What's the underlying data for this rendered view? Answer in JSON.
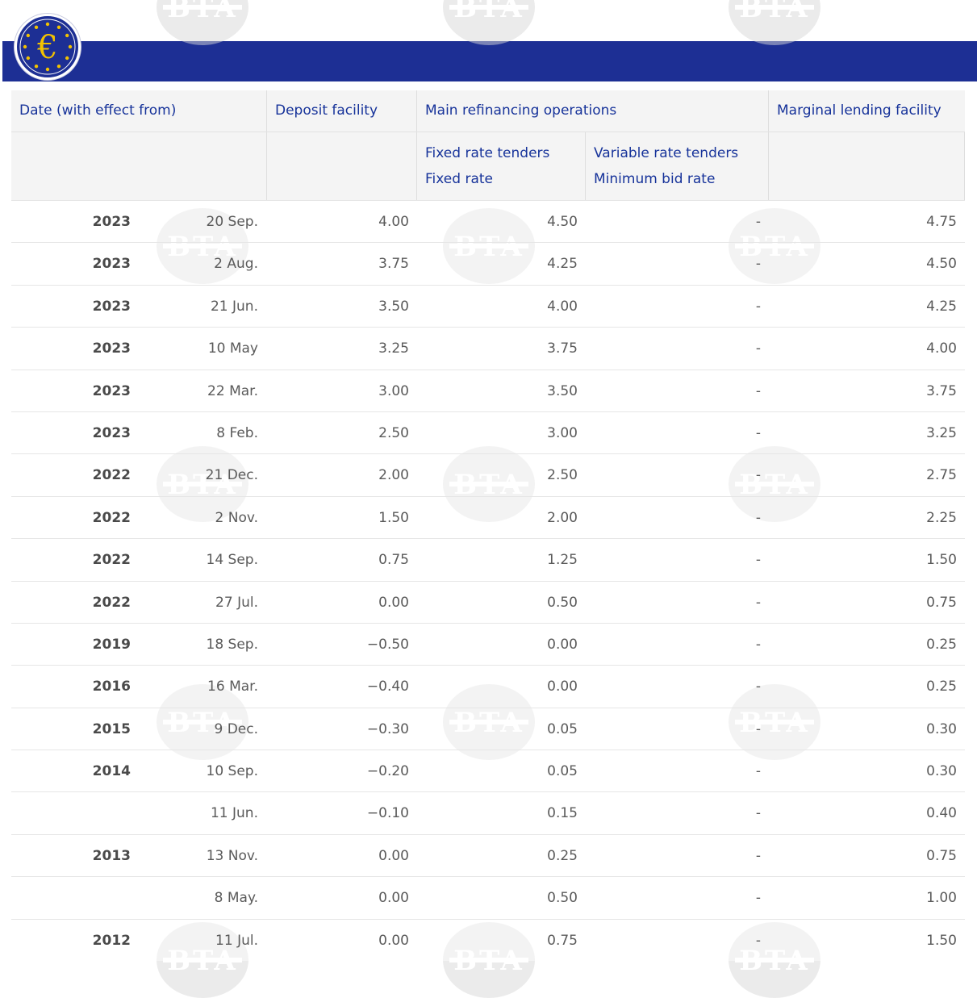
{
  "header": {
    "date_label": "Date (with effect from)",
    "deposit_label": "Deposit facility",
    "mro_label": "Main refinancing operations",
    "mlf_label": "Marginal lending facility",
    "fixed_tenders_label": "Fixed rate tenders",
    "fixed_rate_label": "Fixed rate",
    "variable_tenders_label": "Variable rate tenders",
    "min_bid_label": "Minimum bid rate"
  },
  "rows": [
    {
      "year": "2023",
      "date": "20 Sep.",
      "deposit": "4.00",
      "fixed": "4.50",
      "variable": "-",
      "mlf": "4.75"
    },
    {
      "year": "2023",
      "date": "2 Aug.",
      "deposit": "3.75",
      "fixed": "4.25",
      "variable": "-",
      "mlf": "4.50"
    },
    {
      "year": "2023",
      "date": "21 Jun.",
      "deposit": "3.50",
      "fixed": "4.00",
      "variable": "-",
      "mlf": "4.25"
    },
    {
      "year": "2023",
      "date": "10 May",
      "deposit": "3.25",
      "fixed": "3.75",
      "variable": "-",
      "mlf": "4.00"
    },
    {
      "year": "2023",
      "date": "22 Mar.",
      "deposit": "3.00",
      "fixed": "3.50",
      "variable": "-",
      "mlf": "3.75"
    },
    {
      "year": "2023",
      "date": "8 Feb.",
      "deposit": "2.50",
      "fixed": "3.00",
      "variable": "-",
      "mlf": "3.25"
    },
    {
      "year": "2022",
      "date": "21 Dec.",
      "deposit": "2.00",
      "fixed": "2.50",
      "variable": "-",
      "mlf": "2.75"
    },
    {
      "year": "2022",
      "date": "2 Nov.",
      "deposit": "1.50",
      "fixed": "2.00",
      "variable": "-",
      "mlf": "2.25"
    },
    {
      "year": "2022",
      "date": "14 Sep.",
      "deposit": "0.75",
      "fixed": "1.25",
      "variable": "-",
      "mlf": "1.50"
    },
    {
      "year": "2022",
      "date": "27 Jul.",
      "deposit": "0.00",
      "fixed": "0.50",
      "variable": "-",
      "mlf": "0.75"
    },
    {
      "year": "2019",
      "date": "18 Sep.",
      "deposit": "−0.50",
      "fixed": "0.00",
      "variable": "-",
      "mlf": "0.25"
    },
    {
      "year": "2016",
      "date": "16 Mar.",
      "deposit": "−0.40",
      "fixed": "0.00",
      "variable": "-",
      "mlf": "0.25"
    },
    {
      "year": "2015",
      "date": "9 Dec.",
      "deposit": "−0.30",
      "fixed": "0.05",
      "variable": "-",
      "mlf": "0.30"
    },
    {
      "year": "2014",
      "date": "10 Sep.",
      "deposit": "−0.20",
      "fixed": "0.05",
      "variable": "-",
      "mlf": "0.30"
    },
    {
      "year": "",
      "date": "11 Jun.",
      "deposit": "−0.10",
      "fixed": "0.15",
      "variable": "-",
      "mlf": "0.40"
    },
    {
      "year": "2013",
      "date": "13 Nov.",
      "deposit": "0.00",
      "fixed": "0.25",
      "variable": "-",
      "mlf": "0.75"
    },
    {
      "year": "",
      "date": "8 May.",
      "deposit": "0.00",
      "fixed": "0.50",
      "variable": "-",
      "mlf": "1.00"
    },
    {
      "year": "2012",
      "date": "11 Jul.",
      "deposit": "0.00",
      "fixed": "0.75",
      "variable": "-",
      "mlf": "1.50"
    }
  ],
  "icons": {
    "logo": "euro-logo-icon",
    "watermark": "bta-watermark"
  },
  "colors": {
    "banner": "#1d2f94",
    "header_text": "#17339a",
    "header_bg": "#f4f4f4",
    "body_text": "#5a5a5a"
  }
}
